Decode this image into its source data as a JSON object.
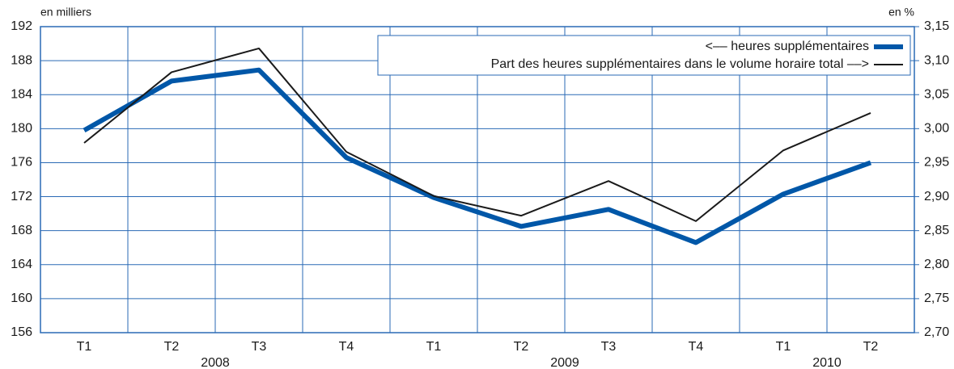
{
  "chart_data": {
    "type": "line",
    "y_label": "en milliers",
    "y2_label": "en %",
    "groups": [
      {
        "name": "2008",
        "categories": [
          "T1",
          "T2",
          "T3",
          "T4"
        ]
      },
      {
        "name": "2009",
        "categories": [
          "T1",
          "T2",
          "T3",
          "T4"
        ]
      },
      {
        "name": "2010",
        "categories": [
          "T1",
          "T2"
        ]
      }
    ],
    "series": [
      {
        "name": "<–– heures supplémentaires",
        "color": "#0057a8",
        "axis": "y",
        "values": [
          179.8,
          185.6,
          186.9,
          176.6,
          171.9,
          168.5,
          170.5,
          166.6,
          172.3,
          176.0
        ]
      },
      {
        "name": "Part des heures supplémentaires dans le volume horaire total ––>",
        "color": "#1a1a1a",
        "axis": "y2",
        "values": [
          2.979,
          3.083,
          3.118,
          2.966,
          2.901,
          2.872,
          2.923,
          2.864,
          2.968,
          3.023
        ]
      }
    ],
    "ylim": [
      156,
      192
    ],
    "yticks": [
      156,
      160,
      164,
      168,
      172,
      176,
      180,
      184,
      188,
      192
    ],
    "y2lim": [
      2.7,
      3.15
    ],
    "y2ticks": [
      {
        "value": 2.7,
        "label": "2,70"
      },
      {
        "value": 2.75,
        "label": "2,75"
      },
      {
        "value": 2.8,
        "label": "2,80"
      },
      {
        "value": 2.85,
        "label": "2,85"
      },
      {
        "value": 2.9,
        "label": "2,90"
      },
      {
        "value": 2.95,
        "label": "2,95"
      },
      {
        "value": 3.0,
        "label": "3,00"
      },
      {
        "value": 3.05,
        "label": "3,05"
      },
      {
        "value": 3.1,
        "label": "3,10"
      },
      {
        "value": 3.15,
        "label": "3,15"
      }
    ],
    "grid": true,
    "legend": "top-right"
  }
}
